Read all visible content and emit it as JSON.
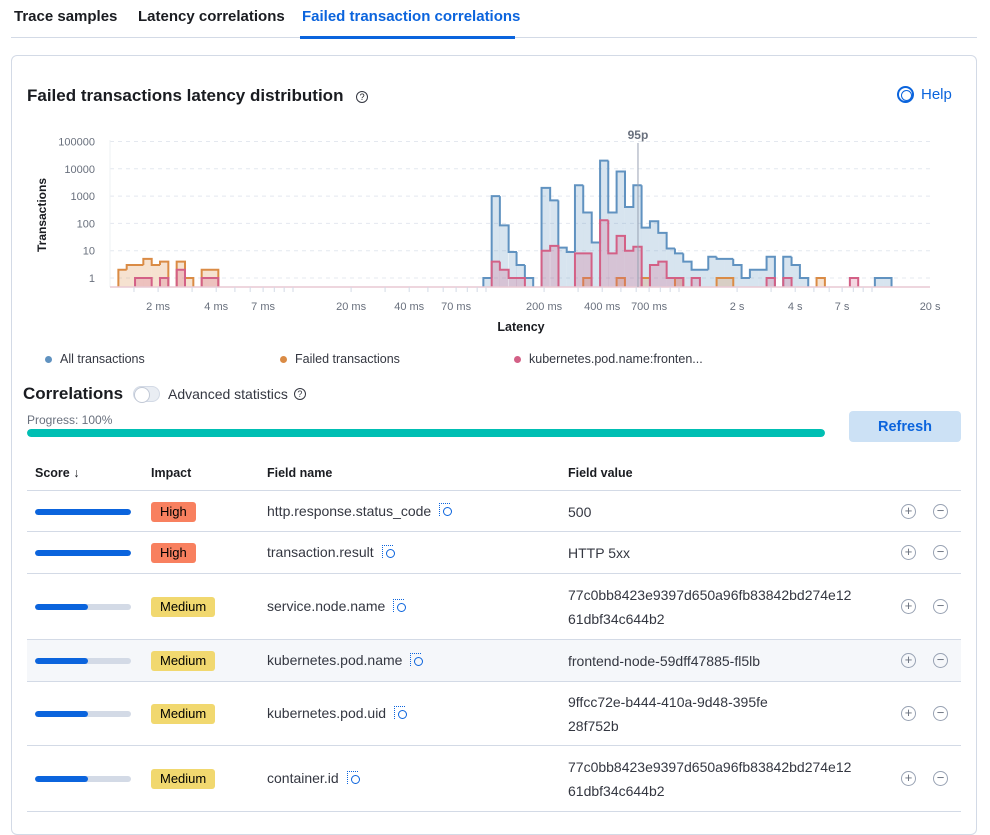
{
  "tabs": [
    {
      "label": "Trace samples",
      "active": false
    },
    {
      "label": "Latency correlations",
      "active": false
    },
    {
      "label": "Failed transaction correlations",
      "active": true
    }
  ],
  "panel": {
    "title": "Failed transactions latency distribution",
    "help_label": "Help",
    "question_glyph": "?"
  },
  "chart_data": {
    "type": "area",
    "xlabel": "Latency",
    "ylabel": "Transactions",
    "x_scale": "log",
    "y_scale": "log",
    "x_ticks": [
      {
        "ms": 2,
        "label": "2 ms"
      },
      {
        "ms": 4,
        "label": "4 ms"
      },
      {
        "ms": 7,
        "label": "7 ms"
      },
      {
        "ms": 20,
        "label": "20 ms"
      },
      {
        "ms": 40,
        "label": "40 ms"
      },
      {
        "ms": 70,
        "label": "70 ms"
      },
      {
        "ms": 200,
        "label": "200 ms"
      },
      {
        "ms": 400,
        "label": "400 ms"
      },
      {
        "ms": 700,
        "label": "700 ms"
      },
      {
        "ms": 2000,
        "label": "2 s"
      },
      {
        "ms": 4000,
        "label": "4 s"
      },
      {
        "ms": 7000,
        "label": "7 s"
      },
      {
        "ms": 20000,
        "label": "20 s"
      }
    ],
    "y_ticks": [
      {
        "v": 1,
        "label": "1"
      },
      {
        "v": 10,
        "label": "10"
      },
      {
        "v": 100,
        "label": "100"
      },
      {
        "v": 1000,
        "label": "1000"
      },
      {
        "v": 10000,
        "label": "10000"
      },
      {
        "v": 100000,
        "label": "100000"
      }
    ],
    "grid": true,
    "percentile": {
      "label": "95p",
      "ms": 613
    },
    "series": [
      {
        "name": "All transactions",
        "color": "#6092c0",
        "bins": [
          [
            96.9,
            1
          ],
          [
            107,
            1000
          ],
          [
            118,
            85
          ],
          [
            131,
            9
          ],
          [
            144,
            3
          ],
          [
            159,
            1
          ],
          [
            194,
            2000
          ],
          [
            215,
            700
          ],
          [
            237,
            13
          ],
          [
            262,
            9
          ],
          [
            289,
            2500
          ],
          [
            319,
            250
          ],
          [
            353,
            20
          ],
          [
            390,
            20000
          ],
          [
            430,
            250
          ],
          [
            475,
            8000
          ],
          [
            525,
            400
          ],
          [
            580,
            2500
          ],
          [
            640,
            70
          ],
          [
            707,
            120
          ],
          [
            781,
            45
          ],
          [
            863,
            12
          ],
          [
            953,
            8
          ],
          [
            1052,
            4
          ],
          [
            1162,
            2
          ],
          [
            1284,
            2
          ],
          [
            1418,
            6
          ],
          [
            1566,
            5
          ],
          [
            1730,
            5
          ],
          [
            1910,
            3
          ],
          [
            2110,
            1
          ],
          [
            2330,
            2
          ],
          [
            2574,
            2
          ],
          [
            2843,
            6
          ],
          [
            3468,
            6
          ],
          [
            3830,
            3
          ],
          [
            4231,
            1
          ],
          [
            10348,
            1
          ],
          [
            11430,
            1
          ]
        ]
      },
      {
        "name": "Failed transactions",
        "color": "#da8b45",
        "bins": [
          [
            1.245,
            2
          ],
          [
            1.375,
            3
          ],
          [
            1.519,
            3
          ],
          [
            1.677,
            5
          ],
          [
            1.853,
            3
          ],
          [
            2.046,
            4
          ],
          [
            2.496,
            4
          ],
          [
            2.757,
            1
          ],
          [
            3.363,
            2
          ],
          [
            3.715,
            2
          ],
          [
            319,
            1
          ],
          [
            475,
            1
          ],
          [
            640,
            1
          ],
          [
            953,
            1
          ],
          [
            1566,
            1
          ],
          [
            1730,
            1
          ],
          [
            5161,
            1
          ]
        ]
      },
      {
        "name": "kubernetes.pod.name:fronten...",
        "color": "#d36086",
        "bins": [
          [
            1.519,
            1
          ],
          [
            1.677,
            1
          ],
          [
            2.046,
            1
          ],
          [
            2.496,
            2
          ],
          [
            3.363,
            1
          ],
          [
            3.715,
            1
          ],
          [
            107,
            4
          ],
          [
            118,
            2
          ],
          [
            131,
            1
          ],
          [
            144,
            1
          ],
          [
            194,
            10
          ],
          [
            215,
            15
          ],
          [
            289,
            8
          ],
          [
            319,
            8
          ],
          [
            390,
            130
          ],
          [
            430,
            8
          ],
          [
            475,
            35
          ],
          [
            525,
            10
          ],
          [
            580,
            14
          ],
          [
            707,
            3
          ],
          [
            781,
            4
          ],
          [
            863,
            1
          ],
          [
            953,
            1
          ],
          [
            1162,
            1
          ],
          [
            2843,
            1
          ],
          [
            3468,
            1
          ],
          [
            7680,
            1
          ]
        ]
      }
    ],
    "legend_position": "bottom"
  },
  "correlations": {
    "title": "Correlations",
    "advanced_label": "Advanced statistics",
    "advanced_enabled": false,
    "progress_label": "Progress: 100%",
    "progress": 1.0,
    "refresh_label": "Refresh",
    "columns": {
      "score": "Score",
      "sort_glyph": "↓",
      "impact": "Impact",
      "field_name": "Field name",
      "field_value": "Field value"
    },
    "colors": {
      "High": "#f8805f",
      "Medium": "#f1d86f"
    },
    "rows": [
      {
        "score": 1.0,
        "impact": "High",
        "field_name": "http.response.status_code",
        "field_value": "500"
      },
      {
        "score": 1.0,
        "impact": "High",
        "field_name": "transaction.result",
        "field_value": "HTTP 5xx"
      },
      {
        "score": 0.55,
        "impact": "Medium",
        "field_name": "service.node.name",
        "field_value": "77c0bb8423e9397d650a96fb83842bd274e1261dbf34c644b2"
      },
      {
        "score": 0.55,
        "impact": "Medium",
        "field_name": "kubernetes.pod.name",
        "field_value": "frontend-node-59dff47885-fl5lb"
      },
      {
        "score": 0.55,
        "impact": "Medium",
        "field_name": "kubernetes.pod.uid",
        "field_value": "9ffcc72e-b444-410a-9d48-395fe28f752b"
      },
      {
        "score": 0.55,
        "impact": "Medium",
        "field_name": "container.id",
        "field_value": "77c0bb8423e9397d650a96fb83842bd274e1261dbf34c644b2"
      }
    ],
    "plus_glyph": "+",
    "minus_glyph": "−"
  }
}
